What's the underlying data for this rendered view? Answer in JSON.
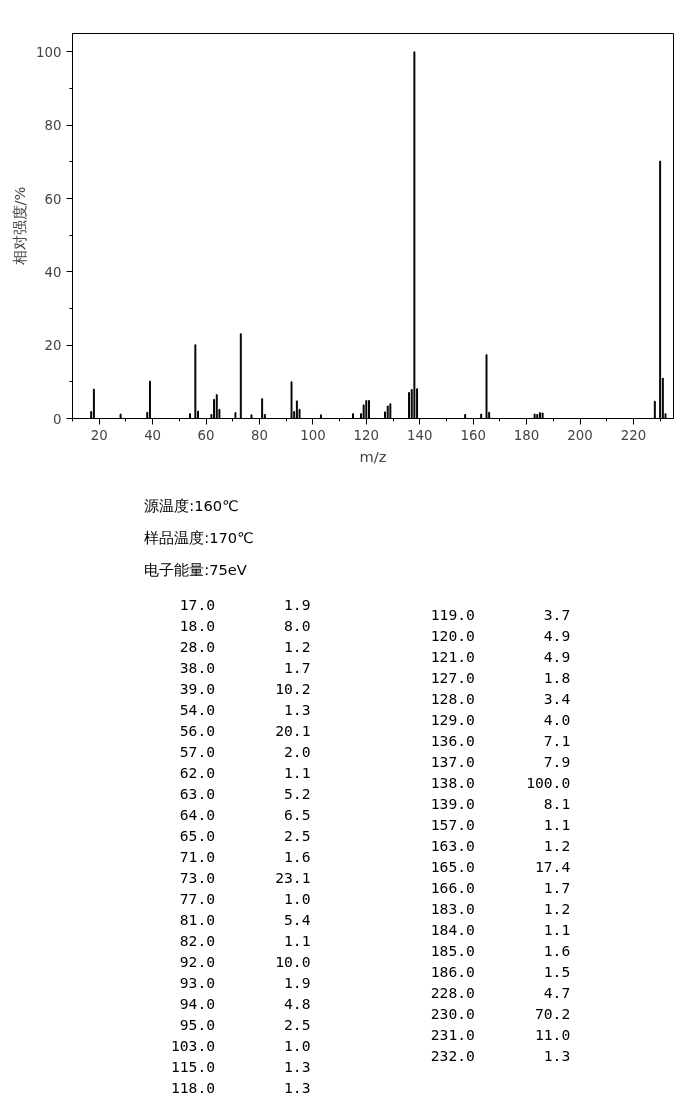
{
  "chart_data": [
    {
      "type": "bar",
      "xlabel": "m/z",
      "ylabel": "相对强度/%",
      "x": [
        17,
        18,
        28,
        38,
        39,
        54,
        56,
        57,
        62,
        63,
        64,
        65,
        71,
        73,
        77,
        81,
        82,
        92,
        93,
        94,
        95,
        103,
        115,
        118,
        119,
        120,
        121,
        127,
        128,
        129,
        136,
        137,
        138,
        139,
        157,
        163,
        165,
        166,
        183,
        184,
        185,
        186,
        228,
        230,
        231,
        232
      ],
      "values": [
        1.9,
        8.0,
        1.2,
        1.7,
        10.2,
        1.3,
        20.1,
        2.0,
        1.1,
        5.2,
        6.5,
        2.5,
        1.6,
        23.1,
        1.0,
        5.4,
        1.1,
        10.0,
        1.9,
        4.8,
        2.5,
        1.0,
        1.3,
        1.3,
        3.7,
        4.9,
        4.9,
        1.8,
        3.4,
        4.0,
        7.1,
        7.9,
        100.0,
        8.1,
        1.1,
        1.2,
        17.4,
        1.7,
        1.2,
        1.1,
        1.6,
        1.5,
        4.7,
        70.2,
        11.0,
        1.3
      ],
      "color": "#000000",
      "xlim": [
        10,
        235
      ],
      "ylim": [
        0,
        105
      ],
      "xticks": [
        20,
        40,
        60,
        80,
        100,
        120,
        140,
        160,
        180,
        200,
        220
      ],
      "yticks": [
        0,
        20,
        40,
        60,
        80,
        100
      ],
      "annotations": [
        "源温度:160℃",
        "样品温度:170℃",
        "电子能量:75eV"
      ]
    },
    {
      "type": "other",
      "categories": [
        "17.0",
        "18.0",
        "28.0",
        "38.0",
        "39.0",
        "54.0",
        "56.0",
        "57.0",
        "62.0",
        "63.0",
        "64.0",
        "65.0",
        "71.0",
        "73.0",
        "77.0",
        "81.0",
        "82.0",
        "92.0",
        "93.0",
        "94.0",
        "95.0",
        "103.0",
        "115.0",
        "118.0",
        "119.0",
        "120.0",
        "121.0",
        "127.0",
        "128.0",
        "129.0",
        "136.0",
        "137.0",
        "138.0",
        "139.0",
        "157.0",
        "163.0",
        "165.0",
        "166.0",
        "183.0",
        "184.0",
        "185.0",
        "186.0",
        "228.0",
        "230.0",
        "231.0",
        "232.0"
      ],
      "values": [
        1.9,
        8.0,
        1.2,
        1.7,
        10.2,
        1.3,
        20.1,
        2.0,
        1.1,
        5.2,
        6.5,
        2.5,
        1.6,
        23.1,
        1.0,
        5.4,
        1.1,
        10.0,
        1.9,
        4.8,
        2.5,
        1.0,
        1.3,
        1.3,
        3.7,
        4.9,
        4.9,
        1.8,
        3.4,
        4.0,
        7.1,
        7.9,
        100.0,
        8.1,
        1.1,
        1.2,
        17.4,
        1.7,
        1.2,
        1.1,
        1.6,
        1.5,
        4.7,
        70.2,
        11.0,
        1.3
      ],
      "value_labels": [
        "1.9",
        "8.0",
        "1.2",
        "1.7",
        "10.2",
        "1.3",
        "20.1",
        "2.0",
        "1.1",
        "5.2",
        "6.5",
        "2.5",
        "1.6",
        "23.1",
        "1.0",
        "5.4",
        "1.1",
        "10.0",
        "1.9",
        "4.8",
        "2.5",
        "1.0",
        "1.3",
        "1.3",
        "3.7",
        "4.9",
        "4.9",
        "1.8",
        "3.4",
        "4.0",
        "7.1",
        "7.9",
        "100.0",
        "8.1",
        "1.1",
        "1.2",
        "17.4",
        "1.7",
        "1.2",
        "1.1",
        "1.6",
        "1.5",
        "4.7",
        "70.2",
        "11.0",
        "1.3"
      ]
    }
  ]
}
